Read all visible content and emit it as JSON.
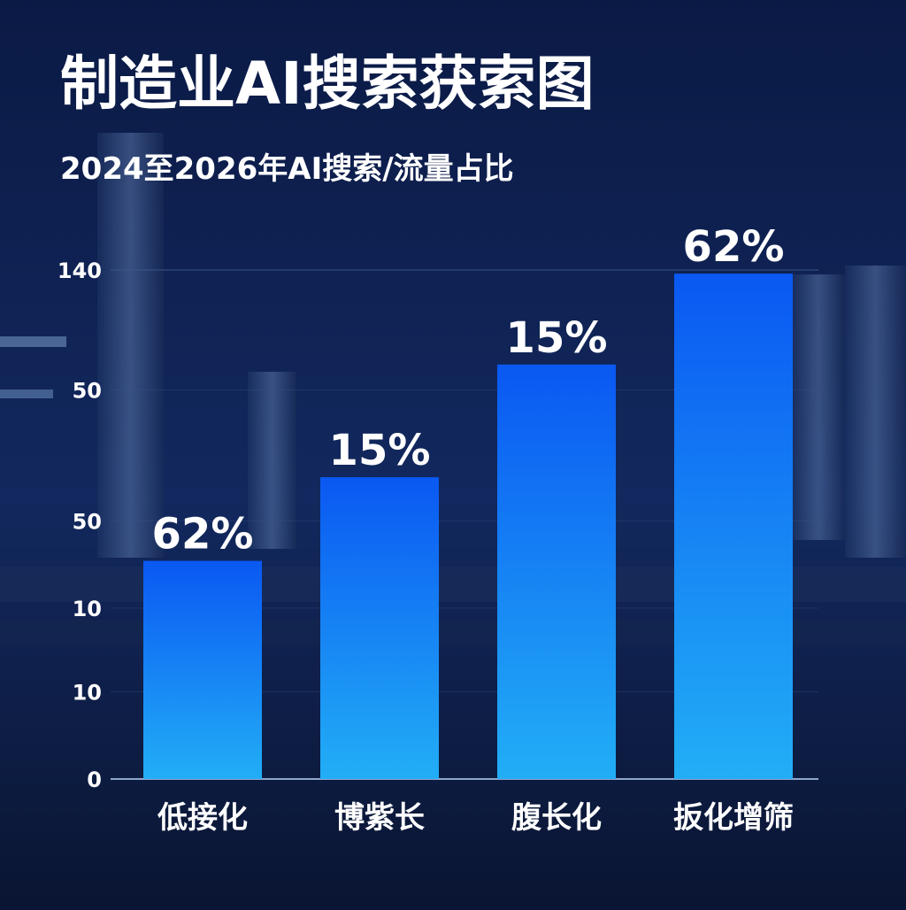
{
  "chart_data": {
    "type": "bar",
    "title": "制造业AI搜索获索图",
    "subtitle": "2024至2026年AI搜索/流量占比",
    "categories": [
      "低接化",
      "博紫长",
      "腹长化",
      "扳化增筛"
    ],
    "values": [
      60,
      83,
      114,
      139
    ],
    "annotations": [
      "62%",
      "15%",
      "15%",
      "62%"
    ],
    "color": [
      "#0a58f2",
      "#22aef6"
    ],
    "ylim": [
      0,
      140
    ],
    "yticks": [
      0,
      {
        "value": 24,
        "label": "10"
      },
      {
        "value": 47,
        "label": "10"
      },
      {
        "value": 71,
        "label": "50"
      },
      {
        "value": 107,
        "label": "50"
      },
      140
    ],
    "grid": true
  }
}
